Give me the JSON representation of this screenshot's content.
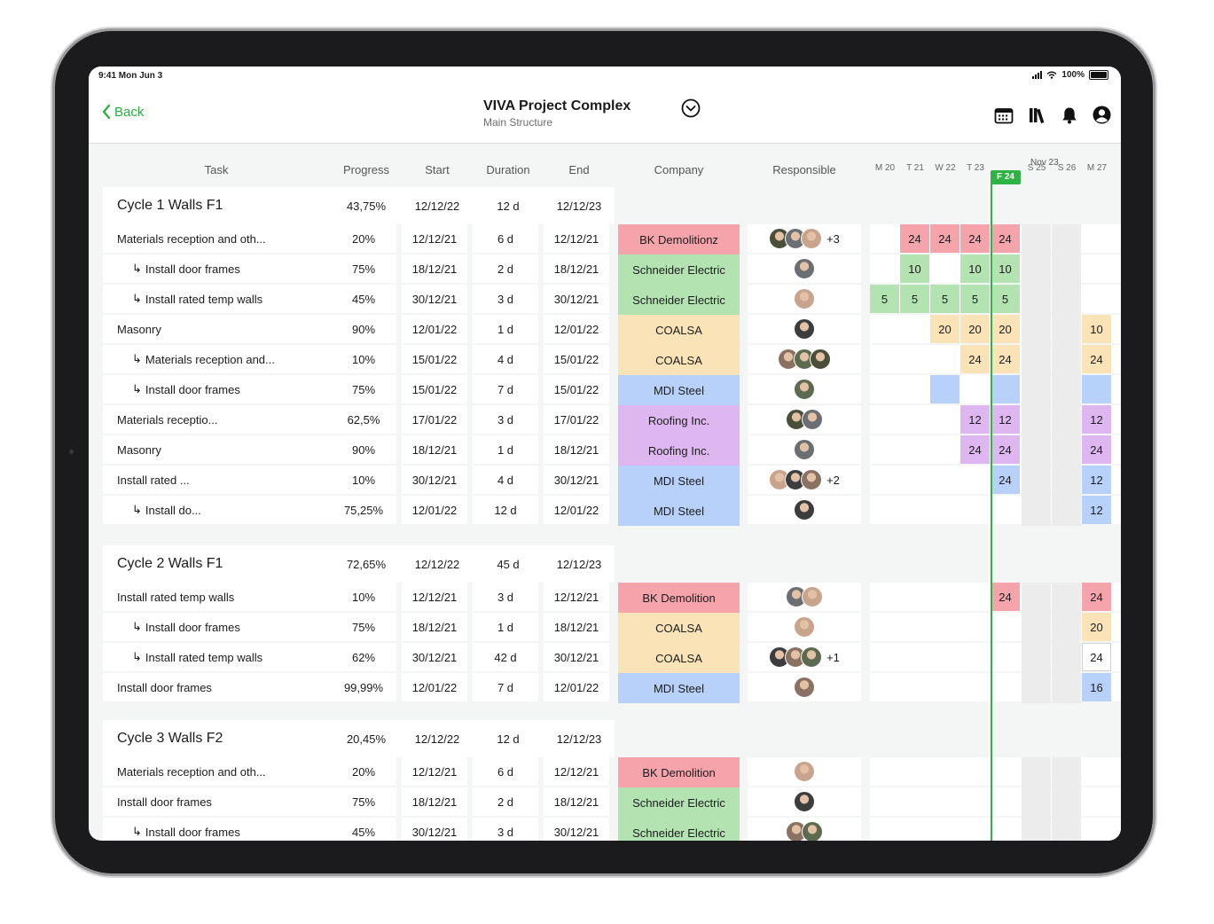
{
  "status_bar": {
    "time": "9:41  Mon Jun 3",
    "battery": "100%"
  },
  "header": {
    "back_label": "Back",
    "title": "VIVA Project Complex",
    "subtitle": "Main Structure"
  },
  "columns": {
    "task": "Task",
    "progress": "Progress",
    "start": "Start",
    "duration": "Duration",
    "end": "End",
    "company": "Company",
    "responsible": "Responsible"
  },
  "timeline": {
    "month": "Nov 23",
    "days": [
      "M 20",
      "T 21",
      "W 22",
      "T 23",
      "F 24",
      "S 25",
      "S 26",
      "M 27"
    ],
    "today": "F 24"
  },
  "colors": {
    "accent": "#2fb344",
    "red": "#f4a4aa",
    "green": "#b3e3b1",
    "yellow": "#fae3b6",
    "blue": "#b8d1fb",
    "purple": "#dfb7f0"
  },
  "cycles": [
    {
      "name": "Cycle 1 Walls F1",
      "progress": "43,75%",
      "start": "12/12/22",
      "duration": "12 d",
      "end": "12/12/23",
      "tasks": [
        {
          "name": "Materials reception and oth...",
          "sub": false,
          "progress": "20%",
          "start": "12/12/21",
          "duration": "6 d",
          "end": "12/12/21",
          "company": "BK Demolitionz",
          "color": "red",
          "avatars": 3,
          "more": "+3",
          "gantt": [
            null,
            "24",
            "24",
            "24",
            "24",
            null,
            null,
            null
          ]
        },
        {
          "name": "Install door frames",
          "sub": true,
          "progress": "75%",
          "start": "18/12/21",
          "duration": "2 d",
          "end": "18/12/21",
          "company": "Schneider Electric",
          "color": "green",
          "avatars": 1,
          "more": "",
          "gantt": [
            null,
            "10",
            null,
            "10",
            "10",
            null,
            null,
            null
          ]
        },
        {
          "name": "Install rated temp walls",
          "sub": true,
          "progress": "45%",
          "start": "30/12/21",
          "duration": "3 d",
          "end": "30/12/21",
          "company": "Schneider Electric",
          "color": "green",
          "avatars": 1,
          "more": "",
          "gantt": [
            "5",
            "5",
            "5",
            "5",
            "5",
            null,
            null,
            null
          ]
        },
        {
          "name": "Masonry",
          "sub": false,
          "progress": "90%",
          "start": "12/01/22",
          "duration": "1 d",
          "end": "12/01/22",
          "company": "COALSA",
          "color": "yellow",
          "avatars": 1,
          "more": "",
          "gantt": [
            null,
            null,
            "20",
            "20",
            "20",
            null,
            null,
            "10"
          ]
        },
        {
          "name": "Materials reception and...",
          "sub": true,
          "progress": "10%",
          "start": "15/01/22",
          "duration": "4 d",
          "end": "15/01/22",
          "company": "COALSA",
          "color": "yellow",
          "avatars": 3,
          "more": "",
          "gantt": [
            null,
            null,
            null,
            "24",
            "24",
            null,
            null,
            "24"
          ]
        },
        {
          "name": "Install door frames",
          "sub": true,
          "progress": "75%",
          "start": "15/01/22",
          "duration": "7 d",
          "end": "15/01/22",
          "company": "MDI Steel",
          "color": "blue",
          "avatars": 1,
          "more": "",
          "gantt": [
            null,
            null,
            "",
            null,
            "",
            null,
            null,
            ""
          ]
        },
        {
          "name": "Materials receptio...",
          "sub": false,
          "progress": "62,5%",
          "start": "17/01/22",
          "duration": "3 d",
          "end": "17/01/22",
          "company": "Roofing Inc.",
          "color": "purple",
          "avatars": 2,
          "more": "",
          "gantt": [
            null,
            null,
            null,
            "12",
            "12",
            null,
            null,
            "12"
          ]
        },
        {
          "name": "Masonry",
          "sub": false,
          "progress": "90%",
          "start": "18/12/21",
          "duration": "1 d",
          "end": "18/12/21",
          "company": "Roofing Inc.",
          "color": "purple",
          "avatars": 1,
          "more": "",
          "gantt": [
            null,
            null,
            null,
            "24",
            "24",
            null,
            null,
            "24"
          ]
        },
        {
          "name": "Install rated ...",
          "sub": false,
          "progress": "10%",
          "start": "30/12/21",
          "duration": "4 d",
          "end": "30/12/21",
          "company": "MDI Steel",
          "color": "blue",
          "avatars": 3,
          "more": "+2",
          "gantt": [
            null,
            null,
            null,
            null,
            "24",
            null,
            null,
            "12"
          ]
        },
        {
          "name": "Install do...",
          "sub": true,
          "progress": "75,25%",
          "start": "12/01/22",
          "duration": "12 d",
          "end": "12/01/22",
          "company": "MDI Steel",
          "color": "blue",
          "avatars": 1,
          "more": "",
          "gantt": [
            null,
            null,
            null,
            null,
            null,
            null,
            null,
            "12"
          ]
        }
      ]
    },
    {
      "name": "Cycle 2 Walls F1",
      "progress": "72,65%",
      "start": "12/12/22",
      "duration": "45 d",
      "end": "12/12/23",
      "tasks": [
        {
          "name": "Install rated temp walls",
          "sub": false,
          "progress": "10%",
          "start": "12/12/21",
          "duration": "3 d",
          "end": "12/12/21",
          "company": "BK Demolition",
          "color": "red",
          "avatars": 2,
          "more": "",
          "gantt": [
            null,
            null,
            null,
            null,
            "24",
            null,
            null,
            "24"
          ]
        },
        {
          "name": "Install door frames",
          "sub": true,
          "progress": "75%",
          "start": "18/12/21",
          "duration": "1 d",
          "end": "18/12/21",
          "company": "COALSA",
          "color": "yellow",
          "avatars": 1,
          "more": "",
          "gantt": [
            null,
            null,
            null,
            null,
            null,
            null,
            null,
            "20"
          ]
        },
        {
          "name": "Install rated temp walls",
          "sub": true,
          "progress": "62%",
          "start": "30/12/21",
          "duration": "42 d",
          "end": "30/12/21",
          "company": "COALSA",
          "color": "yellow",
          "avatars": 3,
          "more": "+1",
          "gantt": [
            null,
            null,
            null,
            null,
            null,
            null,
            null,
            "24"
          ]
        },
        {
          "name": "Install door frames",
          "sub": false,
          "progress": "99,99%",
          "start": "12/01/22",
          "duration": "7 d",
          "end": "12/01/22",
          "company": "MDI Steel",
          "color": "blue",
          "avatars": 1,
          "more": "",
          "gantt": [
            null,
            null,
            null,
            null,
            null,
            null,
            null,
            "16"
          ]
        }
      ]
    },
    {
      "name": "Cycle 3 Walls F2",
      "progress": "20,45%",
      "start": "12/12/22",
      "duration": "12 d",
      "end": "12/12/23",
      "tasks": [
        {
          "name": "Materials reception and oth...",
          "sub": false,
          "progress": "20%",
          "start": "12/12/21",
          "duration": "6 d",
          "end": "12/12/21",
          "company": "BK Demolition",
          "color": "red",
          "avatars": 1,
          "more": "",
          "gantt": [
            null,
            null,
            null,
            null,
            null,
            null,
            null,
            null
          ]
        },
        {
          "name": "Install door frames",
          "sub": false,
          "progress": "75%",
          "start": "18/12/21",
          "duration": "2 d",
          "end": "18/12/21",
          "company": "Schneider Electric",
          "color": "green",
          "avatars": 1,
          "more": "",
          "gantt": [
            null,
            null,
            null,
            null,
            null,
            null,
            null,
            null
          ]
        },
        {
          "name": "Install door frames",
          "sub": true,
          "progress": "45%",
          "start": "30/12/21",
          "duration": "3 d",
          "end": "30/12/21",
          "company": "Schneider Electric",
          "color": "green",
          "avatars": 2,
          "more": "",
          "gantt": [
            null,
            null,
            null,
            null,
            null,
            null,
            null,
            null
          ]
        }
      ]
    }
  ]
}
